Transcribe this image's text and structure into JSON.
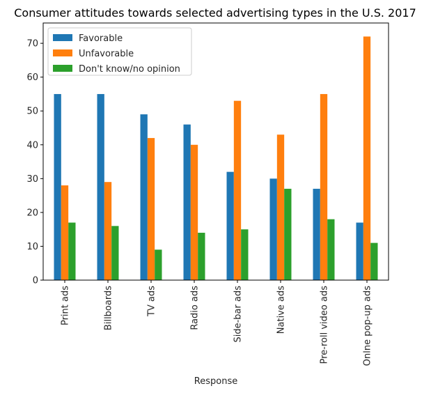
{
  "chart_data": {
    "type": "bar",
    "title": "Consumer attitudes towards selected advertising types in the U.S. 2017",
    "xlabel": "Response",
    "ylabel": "",
    "ylim": [
      0,
      76
    ],
    "yticks": [
      0,
      10,
      20,
      30,
      40,
      50,
      60,
      70
    ],
    "grid": false,
    "legend_position": "top-left",
    "categories": [
      "Print ads",
      "Billboards",
      "TV ads",
      "Radio ads",
      "Side-bar ads",
      "Native ads",
      "Pre-roll video ads",
      "Onlne pop-up ads"
    ],
    "series": [
      {
        "name": "Favorable",
        "color": "#1f77b4",
        "values": [
          55,
          55,
          49,
          46,
          32,
          30,
          27,
          17
        ]
      },
      {
        "name": "Unfavorable",
        "color": "#ff7f0e",
        "values": [
          28,
          29,
          42,
          40,
          53,
          43,
          55,
          72
        ]
      },
      {
        "name": "Don't know/no opinion",
        "color": "#2ca02c",
        "values": [
          17,
          16,
          9,
          14,
          15,
          27,
          18,
          11
        ]
      }
    ]
  }
}
